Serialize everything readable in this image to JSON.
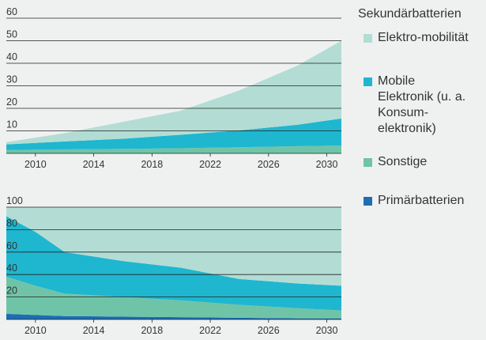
{
  "legend_title": "Sekundärbatterien",
  "chart_data": [
    {
      "type": "stacked_area",
      "x": [
        2008,
        2012,
        2016,
        2020,
        2024,
        2028,
        2031
      ],
      "xlim": [
        2008,
        2031
      ],
      "xticks": [
        2010,
        2014,
        2018,
        2022,
        2026,
        2030
      ],
      "ylim": [
        0,
        60
      ],
      "yticks": [
        10,
        20,
        30,
        40,
        50,
        60
      ],
      "grid": true,
      "series": [
        {
          "name": "Sonstige",
          "color": "#6fc4a8",
          "values": [
            1.5,
            1.8,
            2,
            2.3,
            2.7,
            3.2,
            3.5
          ]
        },
        {
          "name": "Mobile Elektronik (u. a. Konsum-elektronik)",
          "color": "#1fb6cf",
          "values": [
            2.5,
            3.5,
            4.5,
            6,
            7.5,
            9.5,
            12
          ]
        },
        {
          "name": "Elektro-mobilität",
          "color": "#b3ddd4",
          "values": [
            1,
            3.7,
            7.5,
            10.7,
            17.8,
            26.3,
            34.5
          ]
        }
      ]
    },
    {
      "type": "stacked_area",
      "x": [
        2008,
        2010,
        2012,
        2016,
        2020,
        2024,
        2028,
        2031
      ],
      "xlim": [
        2008,
        2031
      ],
      "xticks": [
        2010,
        2014,
        2018,
        2022,
        2026,
        2030
      ],
      "ylim": [
        0,
        100
      ],
      "yticks": [
        20,
        40,
        60,
        80,
        100
      ],
      "grid": true,
      "series": [
        {
          "name": "Primärbatterien",
          "color": "#1d6db3",
          "values": [
            5,
            4,
            3,
            2.5,
            2,
            1.5,
            1,
            1
          ]
        },
        {
          "name": "Sonstige",
          "color": "#6fc4a8",
          "values": [
            33,
            26,
            20,
            17.5,
            15,
            11.5,
            9,
            7
          ]
        },
        {
          "name": "Mobile Elektronik (u. a. Konsum-elektronik)",
          "color": "#1fb6cf",
          "values": [
            54,
            48,
            37,
            32,
            29,
            23,
            22,
            22
          ]
        },
        {
          "name": "Elektro-mobilität",
          "color": "#b3ddd4",
          "values": [
            8,
            22,
            40,
            48,
            54,
            64,
            68,
            70
          ]
        }
      ]
    }
  ]
}
